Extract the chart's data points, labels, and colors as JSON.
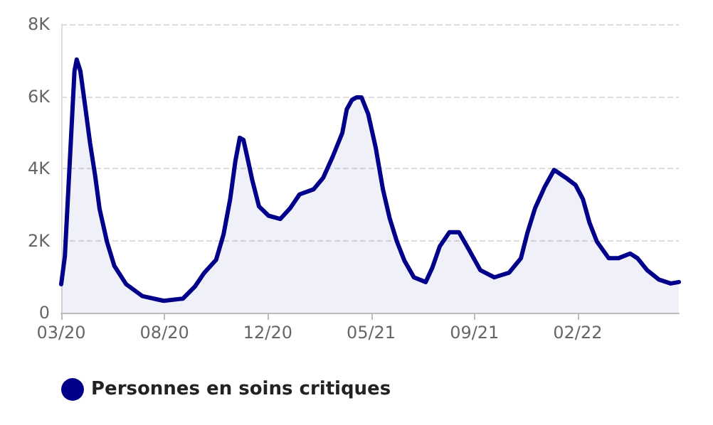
{
  "chart_data": {
    "type": "area",
    "x": [
      "2020-03-18",
      "2020-03-23",
      "2020-03-31",
      "2020-04-05",
      "2020-04-08",
      "2020-04-13",
      "2020-04-19",
      "2020-04-26",
      "2020-05-03",
      "2020-05-09",
      "2020-05-19",
      "2020-05-29",
      "2020-06-14",
      "2020-07-06",
      "2020-07-26",
      "2020-08-04",
      "2020-08-30",
      "2020-09-15",
      "2020-09-28",
      "2020-10-14",
      "2020-10-24",
      "2020-11-02",
      "2020-11-09",
      "2020-11-15",
      "2020-11-20",
      "2020-11-25",
      "2020-12-02",
      "2020-12-11",
      "2020-12-24",
      "2021-01-09",
      "2021-01-22",
      "2021-02-04",
      "2021-02-23",
      "2021-03-08",
      "2021-03-21",
      "2021-04-03",
      "2021-04-09",
      "2021-04-16",
      "2021-04-22",
      "2021-04-29",
      "2021-05-08",
      "2021-05-18",
      "2021-05-28",
      "2021-06-06",
      "2021-06-16",
      "2021-06-26",
      "2021-07-09",
      "2021-07-25",
      "2021-08-03",
      "2021-08-13",
      "2021-08-26",
      "2021-09-08",
      "2021-09-21",
      "2021-10-07",
      "2021-10-26",
      "2021-11-15",
      "2021-12-01",
      "2021-12-10",
      "2021-12-20",
      "2022-01-02",
      "2022-01-15",
      "2022-01-31",
      "2022-02-13",
      "2022-02-23",
      "2022-03-04",
      "2022-03-14",
      "2022-03-30",
      "2022-04-12",
      "2022-04-28",
      "2022-05-08",
      "2022-05-21",
      "2022-06-06",
      "2022-06-22",
      "2022-07-03"
    ],
    "series": [
      {
        "name": "Personnes en soins critiques",
        "color": "#00008b",
        "values": [
          790,
          1570,
          4720,
          6700,
          7020,
          6700,
          5800,
          4720,
          3800,
          2880,
          1970,
          1300,
          790,
          460,
          370,
          330,
          390,
          720,
          1110,
          1470,
          2170,
          3150,
          4200,
          4850,
          4790,
          4330,
          3670,
          2950,
          2690,
          2600,
          2890,
          3280,
          3420,
          3740,
          4330,
          4990,
          5640,
          5900,
          5970,
          5970,
          5510,
          4600,
          3420,
          2630,
          1970,
          1450,
          980,
          850,
          1250,
          1840,
          2230,
          2230,
          1770,
          1180,
          980,
          1110,
          1510,
          2230,
          2890,
          3480,
          3960,
          3740,
          3540,
          3150,
          2490,
          1970,
          1510,
          1510,
          1640,
          1510,
          1180,
          920,
          810,
          850
        ]
      }
    ],
    "xlim": [
      "2020-03-18",
      "2022-07-03"
    ],
    "xticks": [
      {
        "value": "2020-03-18",
        "label": "03/20"
      },
      {
        "value": "2020-08-05",
        "label": "08/20"
      },
      {
        "value": "2020-12-23",
        "label": "12/20"
      },
      {
        "value": "2021-05-12",
        "label": "05/21"
      },
      {
        "value": "2021-09-29",
        "label": "09/21"
      },
      {
        "value": "2022-02-16",
        "label": "02/22"
      }
    ],
    "ylim": [
      0,
      8000
    ],
    "yticks": [
      {
        "value": 0,
        "label": "0"
      },
      {
        "value": 2000,
        "label": "2K"
      },
      {
        "value": 4000,
        "label": "4K"
      },
      {
        "value": 6000,
        "label": "6K"
      },
      {
        "value": 8000,
        "label": "8K"
      }
    ],
    "grid": "y",
    "legend": "bottom left",
    "marker": "none",
    "line_style": "solid"
  }
}
